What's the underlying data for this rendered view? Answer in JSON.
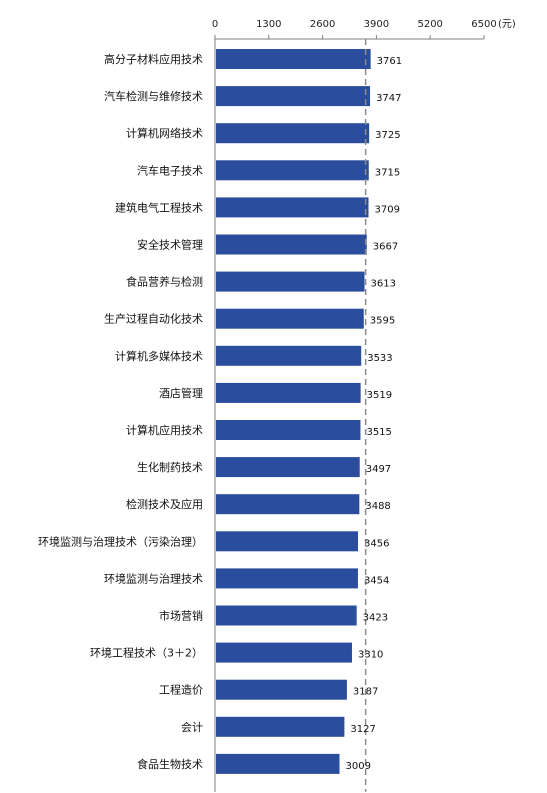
{
  "chart_data": {
    "type": "bar",
    "orientation": "horizontal",
    "unit": "(元)",
    "xlim": [
      0,
      6500
    ],
    "ticks": [
      0,
      1300,
      2600,
      3900,
      5200,
      6500
    ],
    "tick_labels": [
      "0",
      "1300",
      "2600",
      "3900",
      "5200",
      "6500"
    ],
    "axis_position": "top",
    "reference_line": 3640,
    "bar_color": "#2b4d9d",
    "categories": [
      "高分子材料应用技术",
      "汽车检测与维修技术",
      "计算机网络技术",
      "汽车电子技术",
      "建筑电气工程技术",
      "安全技术管理",
      "食品营养与检测",
      "生产过程自动化技术",
      "计算机多媒体技术",
      "酒店管理",
      "计算机应用技术",
      "生化制药技术",
      "检测技术及应用",
      "环境监测与治理技术（污染治理）",
      "环境监测与治理技术",
      "市场营销",
      "环境工程技术（3＋2）",
      "工程造价",
      "会计",
      "食品生物技术"
    ],
    "values": [
      3761,
      3747,
      3725,
      3715,
      3709,
      3667,
      3613,
      3595,
      3533,
      3519,
      3515,
      3497,
      3488,
      3456,
      3454,
      3423,
      3310,
      3187,
      3127,
      3009
    ],
    "data_labels": [
      "3761",
      "3747",
      "3725",
      "3715",
      "3709",
      "3667",
      "3613",
      "3595",
      "3533",
      "3519",
      "3515",
      "3497",
      "3488",
      "3456",
      "3454",
      "3423",
      "3310",
      "3187",
      "3127",
      "3009"
    ],
    "grid": false
  }
}
